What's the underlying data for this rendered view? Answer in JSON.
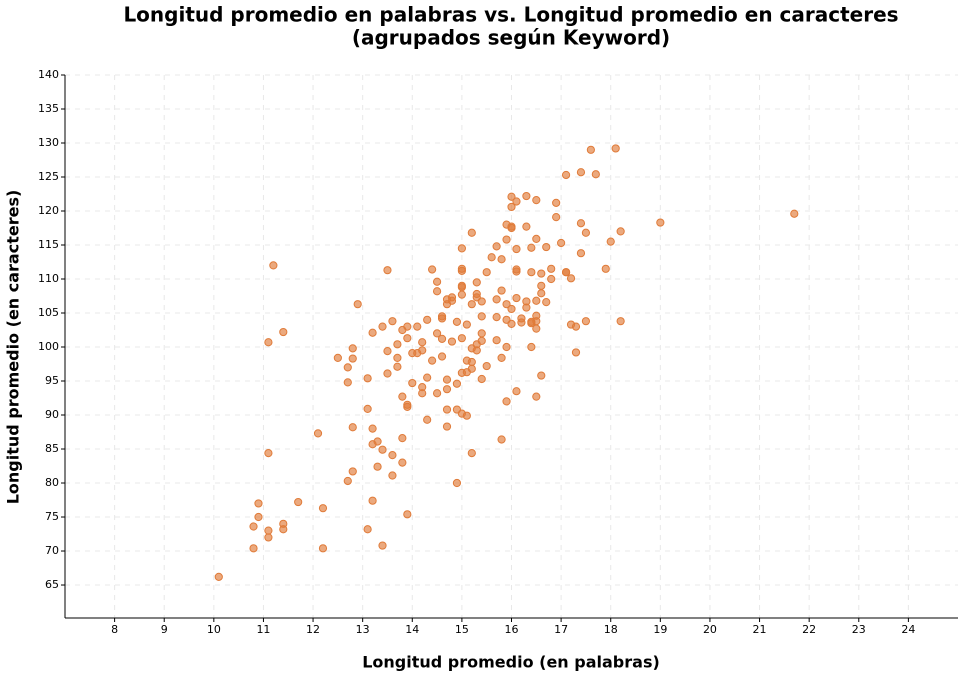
{
  "chart_data": {
    "type": "scatter",
    "title": [
      "Longitud promedio en palabras vs. Longitud promedio en caracteres",
      "(agrupados según Keyword)"
    ],
    "x_label": "Longitud promedio (en palabras)",
    "y_label": "Longitud promedio (en caracteres)",
    "color": "#e07b39",
    "grid": true,
    "xlim": [
      7,
      25
    ],
    "ylim": [
      60.15,
      140
    ],
    "xticks": [
      8,
      9,
      10,
      11,
      12,
      13,
      14,
      15,
      16,
      17,
      18,
      19,
      20,
      21,
      22,
      23,
      24
    ],
    "yticks": [
      65,
      70,
      75,
      80,
      85,
      90,
      95,
      100,
      105,
      110,
      115,
      120,
      125,
      130,
      135,
      140
    ],
    "x": [
      10.1,
      10.8,
      10.8,
      10.9,
      10.9,
      11.1,
      11.1,
      11.1,
      11.4,
      11.4,
      11.7,
      12.2,
      12.2,
      12.1,
      11.2,
      11.4,
      11.1,
      12.5,
      12.7,
      12.7,
      12.8,
      12.8,
      12.8,
      12.7,
      12.8,
      12.9,
      13.1,
      13.1,
      13.1,
      13.2,
      13.2,
      13.2,
      13.2,
      13.3,
      13.3,
      13.4,
      13.4,
      13.4,
      13.5,
      13.5,
      13.5,
      13.6,
      13.6,
      13.6,
      13.7,
      13.7,
      13.7,
      13.8,
      13.8,
      13.8,
      13.8,
      13.9,
      13.9,
      13.9,
      13.9,
      13.9,
      14,
      14,
      14.1,
      14.1,
      14.2,
      14.2,
      14.2,
      14.3,
      14.3,
      14.2,
      14.3,
      14.4,
      14.4,
      14.5,
      14.5,
      14.5,
      14.5,
      14.6,
      14.6,
      14.6,
      14.6,
      14.7,
      14.7,
      14.7,
      14.7,
      14.7,
      14.7,
      14.8,
      14.8,
      14.8,
      14.9,
      14.9,
      14.9,
      14.9,
      15,
      15,
      15,
      15,
      15,
      15,
      15,
      15,
      15,
      15.1,
      15.1,
      15.1,
      15.1,
      15.2,
      15.2,
      15.2,
      15.2,
      15.2,
      15.2,
      15.3,
      15.3,
      15.3,
      15.3,
      15.3,
      15.4,
      15.4,
      15.4,
      15.4,
      15.4,
      15.5,
      15.5,
      15.6,
      15.7,
      15.7,
      15.7,
      15.7,
      15.8,
      15.8,
      15.8,
      15.8,
      15.9,
      15.9,
      15.9,
      15.9,
      15.9,
      15.9,
      16,
      16,
      16,
      16,
      16,
      16,
      16.1,
      16.1,
      16.1,
      16.1,
      16.1,
      16.1,
      16.2,
      16.2,
      16.3,
      16.3,
      16.3,
      16.3,
      16.4,
      16.4,
      16.4,
      16.4,
      16.4,
      16.5,
      16.5,
      16.5,
      16.5,
      16.5,
      16.5,
      16.5,
      16.6,
      16.6,
      16.6,
      16.6,
      16.7,
      16.7,
      16.8,
      16.8,
      16.9,
      16.9,
      17,
      17.1,
      17.1,
      17.1,
      17.2,
      17.2,
      17.3,
      17.3,
      17.4,
      17.4,
      17.4,
      17.5,
      17.5,
      17.6,
      17.7,
      17.9,
      18,
      18.1,
      18.2,
      18.2,
      19,
      21.7
    ],
    "y": [
      66.2,
      70.4,
      73.6,
      77,
      75,
      72,
      73,
      84.4,
      73.2,
      74,
      77.2,
      70.4,
      76.3,
      87.3,
      112,
      102.2,
      100.7,
      98.4,
      97,
      94.8,
      98.3,
      99.8,
      88.2,
      80.3,
      81.7,
      106.3,
      73.2,
      90.9,
      95.4,
      102.1,
      88,
      85.7,
      77.4,
      86.1,
      82.4,
      70.8,
      84.9,
      103,
      99.4,
      96.1,
      111.3,
      103.8,
      81.1,
      84.1,
      98.4,
      97.1,
      100.4,
      83,
      86.6,
      92.7,
      102.5,
      103,
      101.3,
      91.2,
      91.5,
      75.4,
      94.7,
      99.1,
      103,
      99.1,
      100.7,
      93.2,
      94.1,
      95.5,
      104,
      99.5,
      89.3,
      111.4,
      98,
      102,
      93.2,
      109.6,
      108.2,
      104.2,
      104.5,
      98.6,
      101.2,
      107,
      106.3,
      95.2,
      93.8,
      90.8,
      88.3,
      100.8,
      106.8,
      107.3,
      103.7,
      94.6,
      90.8,
      80,
      96.2,
      108.8,
      109,
      107.7,
      101.3,
      111.2,
      111.5,
      114.5,
      90.2,
      89.9,
      103.3,
      98,
      96.3,
      116.8,
      106.3,
      99.8,
      97.8,
      96.8,
      84.4,
      107.8,
      107.3,
      109.5,
      100.4,
      99.5,
      106.7,
      104.5,
      102,
      100.9,
      95.3,
      97.2,
      111,
      113.2,
      114.8,
      107,
      104.4,
      101,
      86.4,
      98.4,
      112.9,
      108.3,
      118,
      115.8,
      106.3,
      104,
      100,
      92,
      120.6,
      117.5,
      117.7,
      105.6,
      103.4,
      122.1,
      121.4,
      114.4,
      111.1,
      111.4,
      107.2,
      93.5,
      104.2,
      103.6,
      106.7,
      105.8,
      117.7,
      122.2,
      114.6,
      111,
      103.7,
      103.5,
      100,
      121.6,
      115.9,
      106.8,
      104.6,
      102.7,
      92.7,
      103.8,
      107.9,
      109,
      95.8,
      110.8,
      106.6,
      114.7,
      111.5,
      110,
      119.1,
      121.2,
      115.3,
      111,
      111,
      125.3,
      103.3,
      110.1,
      103,
      99.2,
      118.2,
      125.7,
      113.8,
      116.8,
      103.8,
      129,
      125.4,
      111.5,
      115.5,
      129.2,
      117,
      103.8,
      118.3,
      119.6
    ]
  }
}
